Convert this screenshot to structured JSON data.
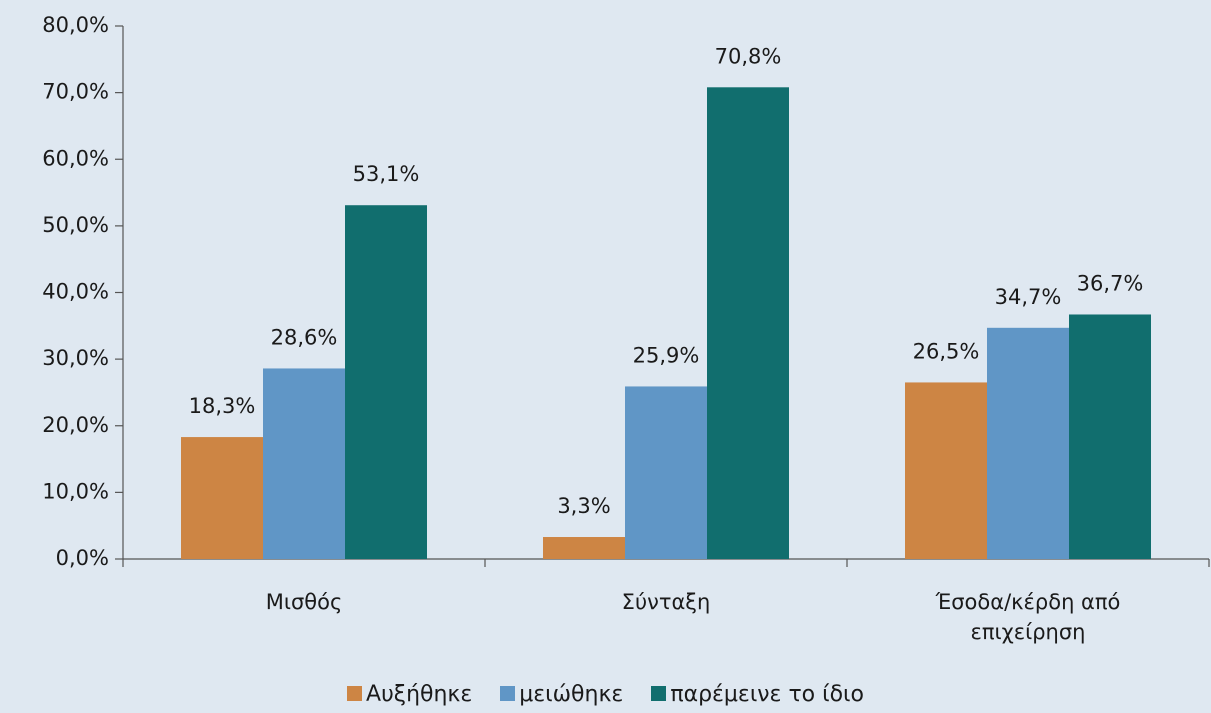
{
  "chart_data": {
    "type": "bar",
    "categories": [
      "Μισθός",
      "Σύνταξη",
      "Έσοδα/κέρδη από επιχείρηση"
    ],
    "series": [
      {
        "name": "Αυξήθηκε",
        "color": "#cd8544",
        "values": [
          18.3,
          3.3,
          26.5
        ],
        "value_labels": [
          "18,3%",
          "3,3%",
          "26,5%"
        ]
      },
      {
        "name": "μειώθηκε",
        "color": "#6096c6",
        "values": [
          28.6,
          25.9,
          34.7
        ],
        "value_labels": [
          "28,6%",
          "25,9%",
          "34,7%"
        ]
      },
      {
        "name": "παρέμεινε το ίδιο",
        "color": "#116e6e",
        "values": [
          53.1,
          70.8,
          36.7
        ],
        "value_labels": [
          "53,1%",
          "70,8%",
          "36,7%"
        ]
      }
    ],
    "ylim": [
      0,
      80
    ],
    "yticks": [
      {
        "value": 0,
        "label": "0,0%"
      },
      {
        "value": 10,
        "label": "10,0%"
      },
      {
        "value": 20,
        "label": "20,0%"
      },
      {
        "value": 30,
        "label": "30,0%"
      },
      {
        "value": 40,
        "label": "40,0%"
      },
      {
        "value": 50,
        "label": "50,0%"
      },
      {
        "value": 60,
        "label": "60,0%"
      },
      {
        "value": 70,
        "label": "70,0%"
      },
      {
        "value": 80,
        "label": "80,0%"
      }
    ],
    "grid": false,
    "legend": "bottom"
  }
}
